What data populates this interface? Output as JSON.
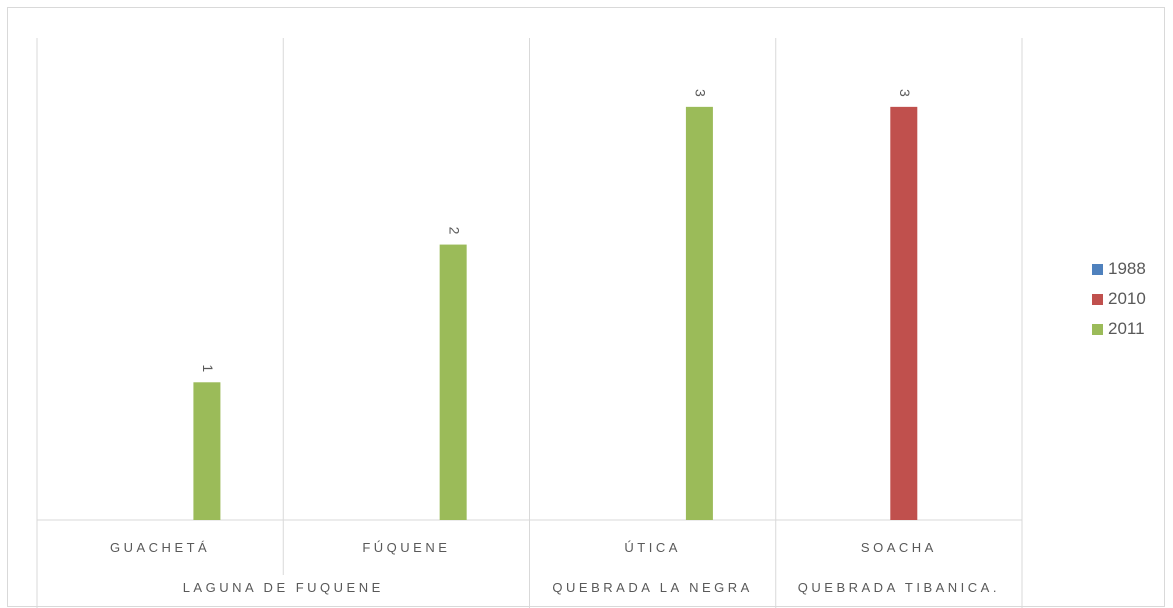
{
  "chart_data": {
    "type": "bar",
    "categories": [
      "GUACHETÁ",
      "FÚQUENE",
      "ÚTICA",
      "SOACHA"
    ],
    "groups": [
      "LAGUNA DE FUQUENE",
      "QUEBRADA LA NEGRA",
      "QUEBRADA TIBANICA."
    ],
    "group_spans": [
      [
        0,
        1
      ],
      [
        2,
        2
      ],
      [
        3,
        3
      ]
    ],
    "series": [
      {
        "name": "1988",
        "color": "#4f81bd",
        "values": [
          null,
          null,
          null,
          null
        ]
      },
      {
        "name": "2010",
        "color": "#c0504d",
        "values": [
          null,
          null,
          null,
          3
        ]
      },
      {
        "name": "2011",
        "color": "#9bbb59",
        "values": [
          1,
          2,
          3,
          null
        ]
      }
    ],
    "data_labels": [
      {
        "category": 0,
        "series": 2,
        "text": "1"
      },
      {
        "category": 1,
        "series": 2,
        "text": "2"
      },
      {
        "category": 2,
        "series": 2,
        "text": "3"
      },
      {
        "category": 3,
        "series": 1,
        "text": "3"
      }
    ],
    "ylim": [
      0,
      3.5
    ],
    "grid": "vertical category separators",
    "legend_position": "right",
    "title": "",
    "xlabel": "",
    "ylabel": ""
  }
}
